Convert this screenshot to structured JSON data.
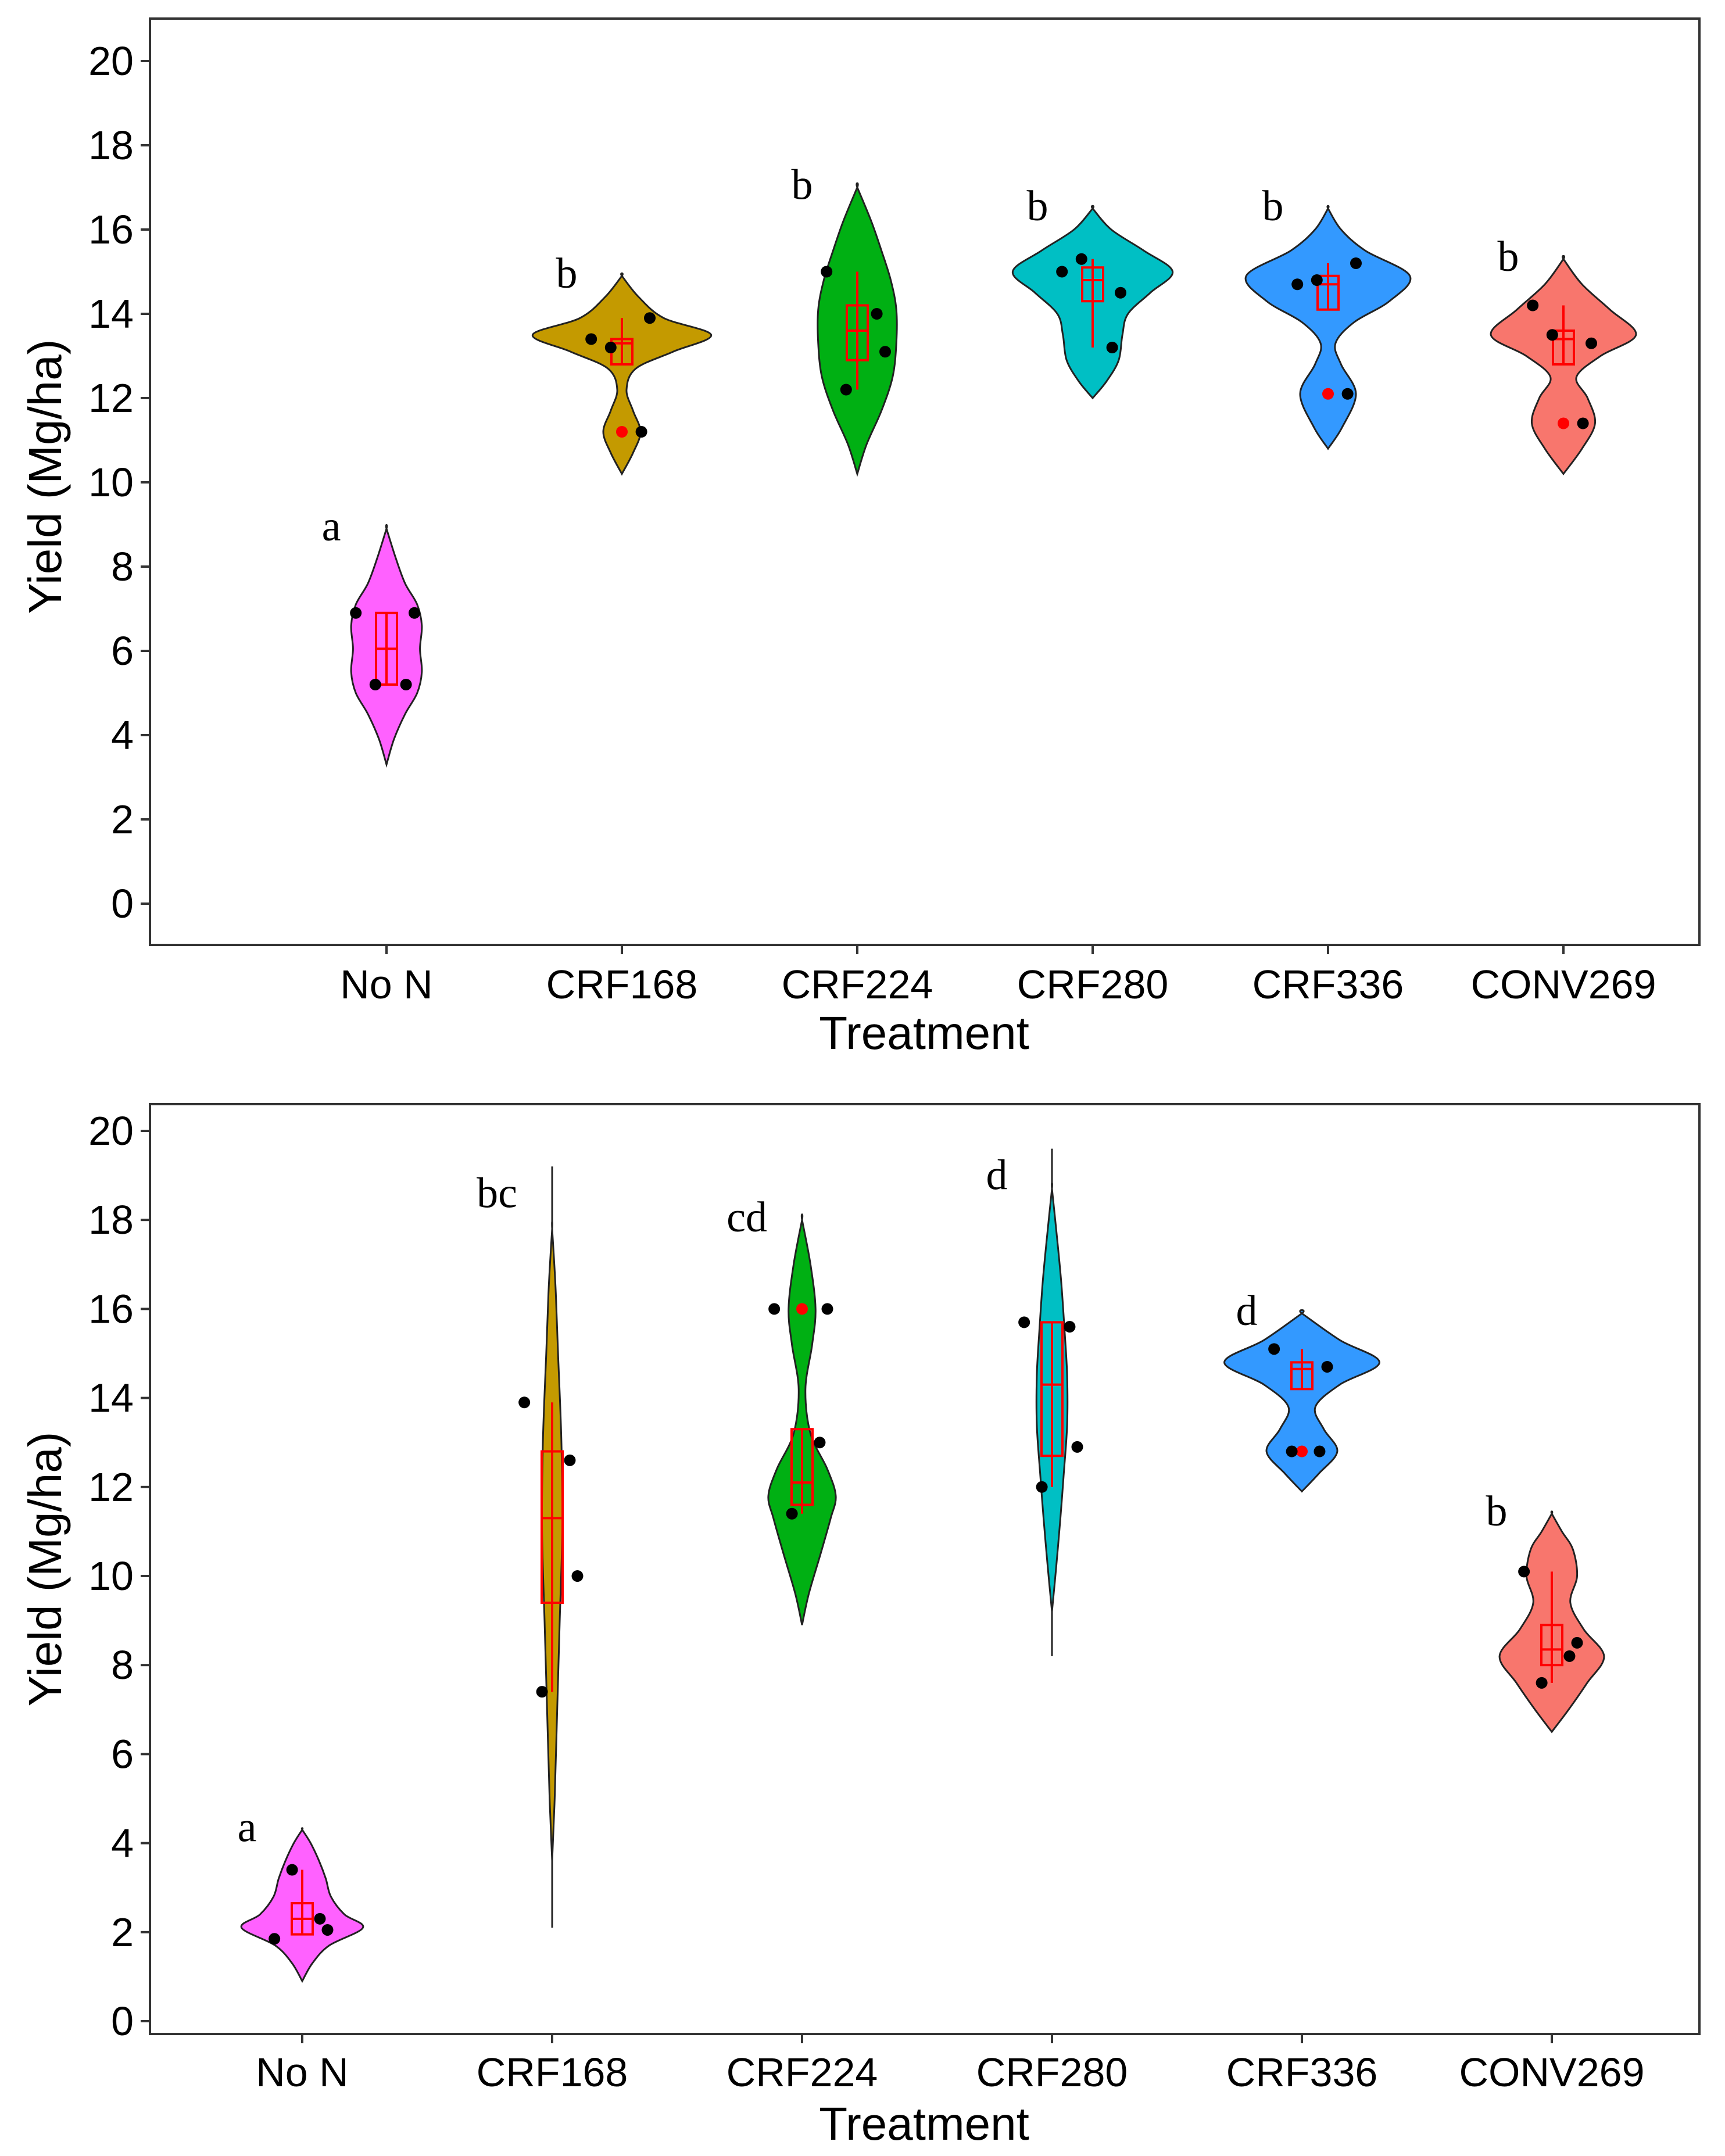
{
  "chart_data": [
    {
      "type": "violin",
      "title": "",
      "xlabel": "Treatment",
      "ylabel": "Yield (Mg/ha)",
      "ylim": [
        -1,
        21
      ],
      "yticks": [
        0,
        2,
        4,
        6,
        8,
        10,
        12,
        14,
        16,
        18,
        20
      ],
      "categories": [
        "No N",
        "CRF168",
        "CRF224",
        "CRF280",
        "CRF336",
        "CONV269"
      ],
      "series": [
        {
          "name": "No N",
          "color": "#FF61FF",
          "letter": "a",
          "points": [
            6.9,
            6.9,
            5.2,
            5.2
          ],
          "outliers": [],
          "box": {
            "q1": 5.2,
            "median": 6.05,
            "q3": 6.9,
            "lo": 5.2,
            "hi": 6.9
          },
          "range": [
            3.3,
            8.9
          ],
          "density": [
            [
              3.3,
              0
            ],
            [
              3.9,
              0.08
            ],
            [
              4.5,
              0.2
            ],
            [
              5.0,
              0.33
            ],
            [
              5.5,
              0.38
            ],
            [
              6.05,
              0.36
            ],
            [
              6.6,
              0.38
            ],
            [
              7.1,
              0.33
            ],
            [
              7.6,
              0.2
            ],
            [
              8.2,
              0.1
            ],
            [
              8.9,
              0
            ]
          ]
        },
        {
          "name": "CRF168",
          "color": "#C49A00",
          "letter": "b",
          "points": [
            13.4,
            13.9,
            13.2,
            11.2
          ],
          "outliers": [
            11.2
          ],
          "box": {
            "q1": 12.8,
            "median": 13.3,
            "q3": 13.4,
            "lo": 12.8,
            "hi": 13.9
          },
          "range": [
            10.2,
            14.9
          ],
          "density": [
            [
              10.2,
              0
            ],
            [
              10.7,
              0.12
            ],
            [
              11.2,
              0.2
            ],
            [
              11.7,
              0.12
            ],
            [
              12.2,
              0.05
            ],
            [
              12.7,
              0.15
            ],
            [
              13.1,
              0.55
            ],
            [
              13.5,
              0.96
            ],
            [
              13.9,
              0.45
            ],
            [
              14.4,
              0.18
            ],
            [
              14.9,
              0
            ]
          ]
        },
        {
          "name": "CRF224",
          "color": "#00B013",
          "letter": "b",
          "points": [
            15.0,
            13.1,
            12.2,
            14.0
          ],
          "outliers": [],
          "box": {
            "q1": 12.9,
            "median": 13.6,
            "q3": 14.2,
            "lo": 12.2,
            "hi": 15.0
          },
          "range": [
            10.2,
            17.0
          ],
          "density": [
            [
              10.2,
              0
            ],
            [
              10.9,
              0.1
            ],
            [
              11.7,
              0.26
            ],
            [
              12.5,
              0.38
            ],
            [
              13.3,
              0.42
            ],
            [
              14.1,
              0.42
            ],
            [
              14.8,
              0.36
            ],
            [
              15.5,
              0.26
            ],
            [
              16.2,
              0.15
            ],
            [
              17.0,
              0
            ]
          ]
        },
        {
          "name": "CRF280",
          "color": "#00BFC4",
          "letter": "b",
          "points": [
            15.0,
            14.5,
            15.3,
            13.2
          ],
          "outliers": [],
          "box": {
            "q1": 14.3,
            "median": 14.8,
            "q3": 15.1,
            "lo": 13.2,
            "hi": 15.3
          },
          "range": [
            12.0,
            16.5
          ],
          "density": [
            [
              12.0,
              0
            ],
            [
              12.4,
              0.15
            ],
            [
              12.9,
              0.28
            ],
            [
              13.5,
              0.32
            ],
            [
              14.0,
              0.38
            ],
            [
              14.5,
              0.62
            ],
            [
              15.0,
              0.86
            ],
            [
              15.5,
              0.55
            ],
            [
              16.0,
              0.2
            ],
            [
              16.5,
              0
            ]
          ]
        },
        {
          "name": "CRF336",
          "color": "#3399FF",
          "letter": "b",
          "points": [
            14.7,
            15.2,
            14.8,
            12.1
          ],
          "outliers": [
            12.1
          ],
          "box": {
            "q1": 14.1,
            "median": 14.7,
            "q3": 14.9,
            "lo": 14.1,
            "hi": 15.2
          },
          "range": [
            10.8,
            16.5
          ],
          "density": [
            [
              10.8,
              0
            ],
            [
              11.3,
              0.15
            ],
            [
              12.1,
              0.3
            ],
            [
              12.8,
              0.14
            ],
            [
              13.3,
              0.08
            ],
            [
              13.8,
              0.28
            ],
            [
              14.3,
              0.66
            ],
            [
              14.9,
              0.88
            ],
            [
              15.5,
              0.4
            ],
            [
              16.0,
              0.14
            ],
            [
              16.5,
              0
            ]
          ]
        },
        {
          "name": "CONV269",
          "color": "#F8766D",
          "letter": "b",
          "points": [
            14.2,
            13.3,
            13.5,
            11.4
          ],
          "outliers": [
            11.4
          ],
          "box": {
            "q1": 12.8,
            "median": 13.4,
            "q3": 13.6,
            "lo": 12.8,
            "hi": 14.2
          },
          "range": [
            10.2,
            15.3
          ],
          "density": [
            [
              10.2,
              0
            ],
            [
              10.8,
              0.2
            ],
            [
              11.4,
              0.34
            ],
            [
              12.0,
              0.26
            ],
            [
              12.5,
              0.14
            ],
            [
              13.0,
              0.4
            ],
            [
              13.5,
              0.78
            ],
            [
              14.1,
              0.5
            ],
            [
              14.7,
              0.2
            ],
            [
              15.3,
              0
            ]
          ]
        }
      ]
    },
    {
      "type": "violin",
      "title": "",
      "xlabel": "Treatment",
      "ylabel": "Yield (Mg/ha)",
      "ylim": [
        -0.3,
        20.6
      ],
      "yticks": [
        0,
        2,
        4,
        6,
        8,
        10,
        12,
        14,
        16,
        18,
        20
      ],
      "categories": [
        "No N",
        "CRF168",
        "CRF224",
        "CRF280",
        "CRF336",
        "CONV269"
      ],
      "series": [
        {
          "name": "No N",
          "color": "#FF61FF",
          "letter": "a",
          "points": [
            1.85,
            2.05,
            3.4,
            2.3
          ],
          "outliers": [],
          "box": {
            "q1": 1.95,
            "median": 2.3,
            "q3": 2.65,
            "lo": 1.95,
            "hi": 3.4
          },
          "range": [
            0.9,
            4.3
          ],
          "density": [
            [
              0.9,
              0
            ],
            [
              1.3,
              0.12
            ],
            [
              1.7,
              0.32
            ],
            [
              2.1,
              0.72
            ],
            [
              2.4,
              0.5
            ],
            [
              2.8,
              0.34
            ],
            [
              3.2,
              0.28
            ],
            [
              3.6,
              0.2
            ],
            [
              4.0,
              0.1
            ],
            [
              4.3,
              0
            ]
          ]
        },
        {
          "name": "CRF168",
          "color": "#C49A00",
          "letter": "bc",
          "points": [
            13.9,
            10.0,
            7.4,
            12.6
          ],
          "outliers": [],
          "box": {
            "q1": 9.4,
            "median": 11.3,
            "q3": 12.8,
            "lo": 7.4,
            "hi": 13.9
          },
          "range": [
            3.6,
            17.8
          ],
          "whisker_full": [
            2.1,
            19.2
          ],
          "density": [
            [
              3.6,
              0
            ],
            [
              5.0,
              0.03
            ],
            [
              7.0,
              0.06
            ],
            [
              9.0,
              0.09
            ],
            [
              11.0,
              0.12
            ],
            [
              13.0,
              0.11
            ],
            [
              15.0,
              0.07
            ],
            [
              16.5,
              0.04
            ],
            [
              17.8,
              0
            ]
          ]
        },
        {
          "name": "CRF224",
          "color": "#00B013",
          "letter": "cd",
          "points": [
            16.0,
            16.0,
            11.4,
            13.0
          ],
          "outliers": [
            16.0
          ],
          "box": {
            "q1": 11.6,
            "median": 12.1,
            "q3": 13.3,
            "lo": 11.4,
            "hi": 13.3
          },
          "range": [
            8.9,
            18.0
          ],
          "density": [
            [
              8.9,
              0
            ],
            [
              9.6,
              0.08
            ],
            [
              10.5,
              0.22
            ],
            [
              11.3,
              0.34
            ],
            [
              11.8,
              0.4
            ],
            [
              12.4,
              0.3
            ],
            [
              13.2,
              0.1
            ],
            [
              14.2,
              0.04
            ],
            [
              15.2,
              0.12
            ],
            [
              16.0,
              0.16
            ],
            [
              17.0,
              0.1
            ],
            [
              18.0,
              0
            ]
          ]
        },
        {
          "name": "CRF280",
          "color": "#00BFC4",
          "letter": "d",
          "points": [
            15.7,
            12.9,
            12.0,
            15.6
          ],
          "outliers": [],
          "box": {
            "q1": 12.7,
            "median": 14.3,
            "q3": 15.7,
            "lo": 12.0,
            "hi": 15.7
          },
          "range": [
            9.2,
            18.7
          ],
          "whisker_full": [
            8.2,
            19.6
          ],
          "density": [
            [
              9.2,
              0
            ],
            [
              10.2,
              0.05
            ],
            [
              11.3,
              0.1
            ],
            [
              12.3,
              0.14
            ],
            [
              13.4,
              0.18
            ],
            [
              14.5,
              0.18
            ],
            [
              15.5,
              0.15
            ],
            [
              16.6,
              0.11
            ],
            [
              17.6,
              0.06
            ],
            [
              18.7,
              0
            ]
          ]
        },
        {
          "name": "CRF336",
          "color": "#3399FF",
          "letter": "d",
          "points": [
            15.1,
            14.7,
            12.8,
            12.8
          ],
          "outliers": [
            12.8
          ],
          "box": {
            "q1": 14.2,
            "median": 14.65,
            "q3": 14.8,
            "lo": 14.2,
            "hi": 15.1
          },
          "range": [
            11.9,
            15.9
          ],
          "density": [
            [
              11.9,
              0
            ],
            [
              12.3,
              0.2
            ],
            [
              12.8,
              0.42
            ],
            [
              13.3,
              0.26
            ],
            [
              13.8,
              0.16
            ],
            [
              14.3,
              0.45
            ],
            [
              14.8,
              0.92
            ],
            [
              15.3,
              0.45
            ],
            [
              15.9,
              0
            ]
          ]
        },
        {
          "name": "CONV269",
          "color": "#F8766D",
          "letter": "b",
          "points": [
            10.1,
            8.5,
            7.6,
            8.2
          ],
          "outliers": [],
          "box": {
            "q1": 8.0,
            "median": 8.35,
            "q3": 8.9,
            "lo": 7.6,
            "hi": 10.1
          },
          "range": [
            6.5,
            11.4
          ],
          "density": [
            [
              6.5,
              0
            ],
            [
              7.0,
              0.2
            ],
            [
              7.6,
              0.42
            ],
            [
              8.2,
              0.62
            ],
            [
              8.8,
              0.38
            ],
            [
              9.4,
              0.22
            ],
            [
              10.0,
              0.3
            ],
            [
              10.6,
              0.25
            ],
            [
              11.0,
              0.12
            ],
            [
              11.4,
              0
            ]
          ]
        }
      ]
    }
  ]
}
